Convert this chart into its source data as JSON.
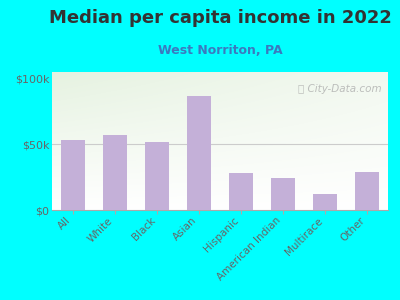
{
  "title": "Median per capita income in 2022",
  "subtitle": "West Norriton, PA",
  "categories": [
    "All",
    "White",
    "Black",
    "Asian",
    "Hispanic",
    "American Indian",
    "Multirace",
    "Other"
  ],
  "values": [
    53000,
    57000,
    52000,
    87000,
    28000,
    24000,
    12000,
    29000
  ],
  "bar_color": "#c4b0d8",
  "background_outer": "#00FFFF",
  "title_color": "#333333",
  "subtitle_color": "#3a7abf",
  "tick_color": "#666666",
  "yticks": [
    0,
    50000,
    100000
  ],
  "ytick_labels": [
    "$0",
    "$50k",
    "$100k"
  ],
  "ylim": [
    0,
    105000
  ],
  "watermark": "ⓘ City-Data.com",
  "title_fontsize": 13,
  "subtitle_fontsize": 9
}
